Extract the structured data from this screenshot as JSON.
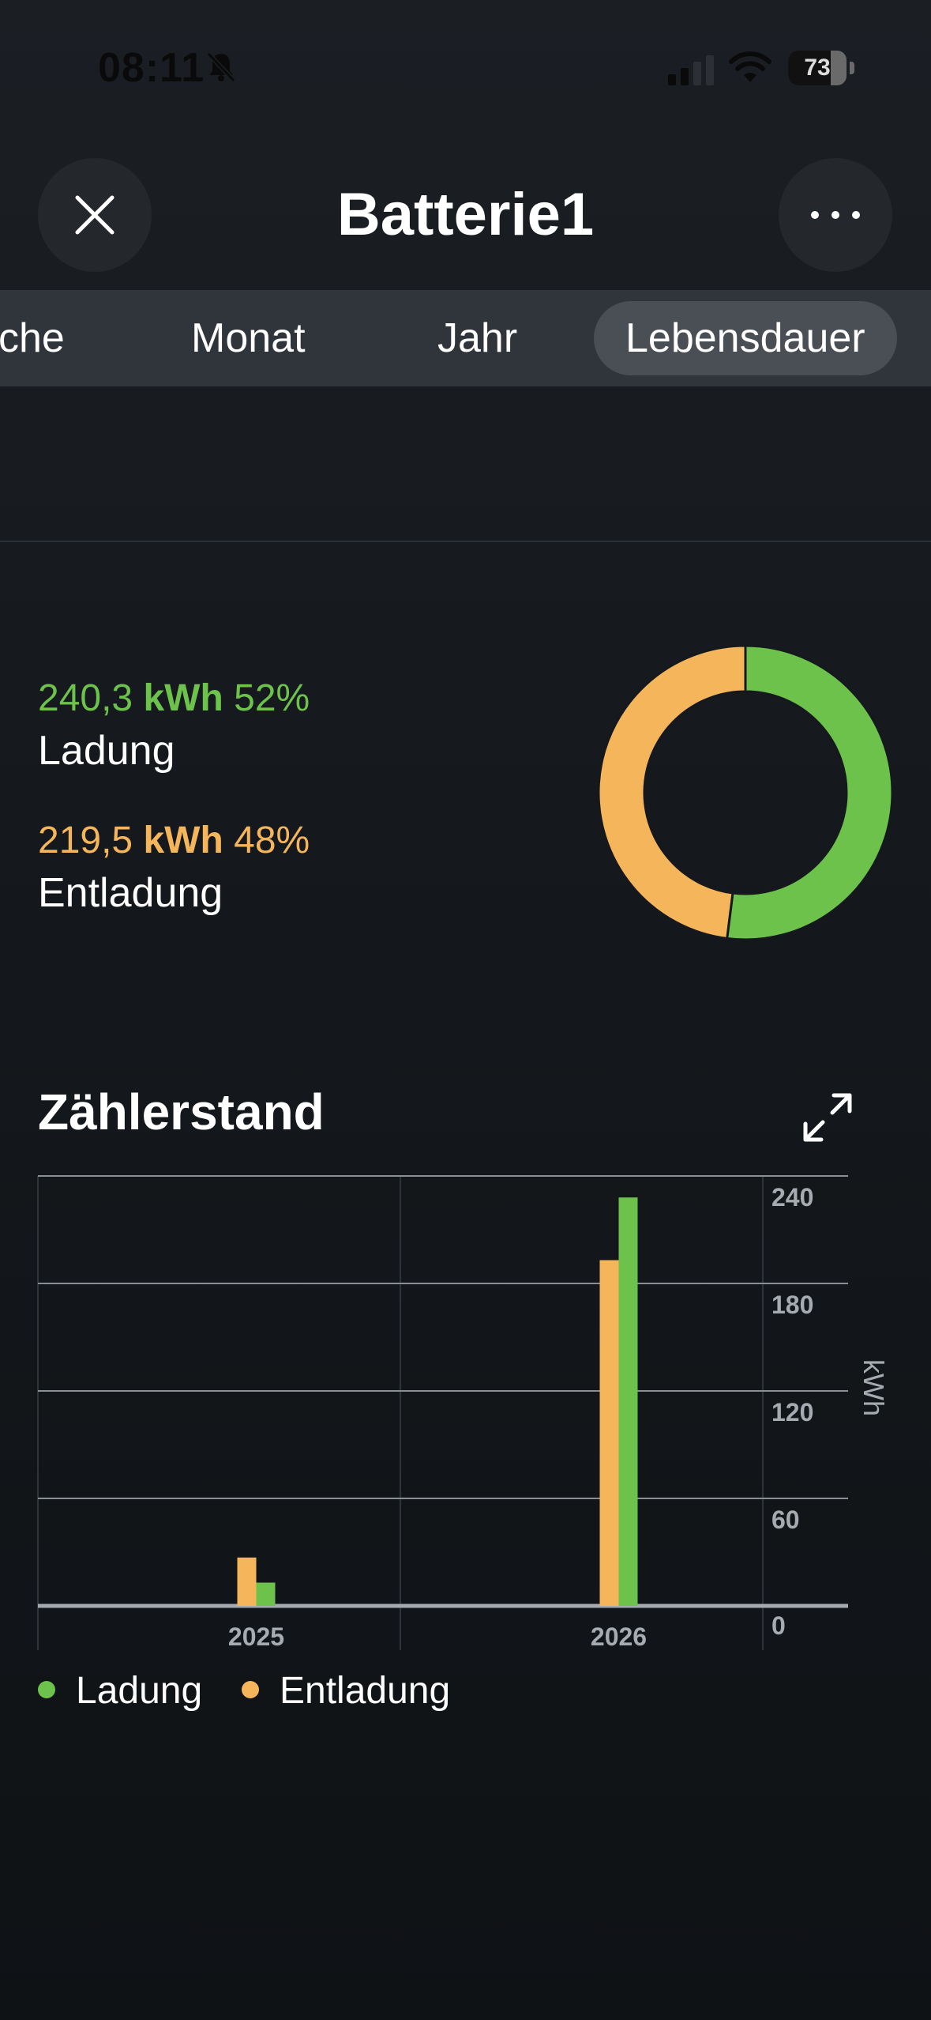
{
  "status_bar": {
    "time": "08:11",
    "battery_percent": "73",
    "battery_level": 0.73
  },
  "header": {
    "title": "Batterie1"
  },
  "tabs": [
    {
      "label": "che",
      "active": false
    },
    {
      "label": "Monat",
      "active": false
    },
    {
      "label": "Jahr",
      "active": false
    },
    {
      "label": "Lebensdauer",
      "active": true
    }
  ],
  "summary": {
    "charge": {
      "value": "240,3",
      "unit": "kWh",
      "percent": "52%",
      "label": "Ladung",
      "color": "#6cc24a"
    },
    "discharge": {
      "value": "219,5",
      "unit": "kWh",
      "percent": "48%",
      "label": "Entladung",
      "color": "#f5b55b"
    }
  },
  "donut": {
    "charge_share": 0.52,
    "discharge_share": 0.48
  },
  "chart_section": {
    "title": "Zählerstand"
  },
  "chart_data": {
    "type": "bar",
    "title": "Zählerstand",
    "categories": [
      "2025",
      "2026"
    ],
    "ylabel": "kWh",
    "ylim": [
      0,
      240
    ],
    "yticks": [
      "240",
      "180",
      "120",
      "60",
      "0"
    ],
    "grid": true,
    "legend_position": "bottom-left",
    "series": [
      {
        "name": "Ladung",
        "color": "#6cc24a",
        "values": [
          13,
          228
        ]
      },
      {
        "name": "Entladung",
        "color": "#f5b55b",
        "values": [
          27,
          193
        ]
      }
    ]
  },
  "legend": [
    {
      "label": "Ladung",
      "color": "#6cc24a"
    },
    {
      "label": "Entladung",
      "color": "#f5b55b"
    }
  ]
}
